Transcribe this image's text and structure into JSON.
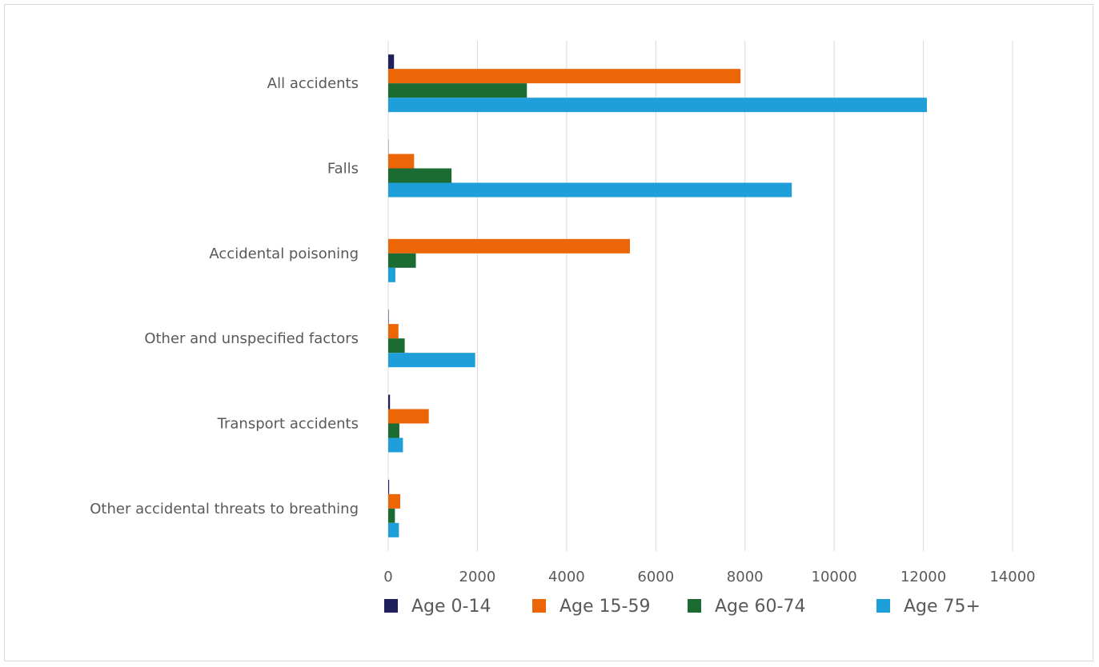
{
  "chart_data": {
    "type": "bar",
    "orientation": "horizontal",
    "categories": [
      "All accidents",
      "Falls",
      "Accidental poisoning",
      "Other and unspecified factors",
      "Transport accidents",
      "Other accidental threats to breathing"
    ],
    "series": [
      {
        "name": "Age 0-14",
        "color": "#1f1f5c",
        "values": [
          130,
          5,
          0,
          10,
          40,
          20
        ]
      },
      {
        "name": "Age 15-59",
        "color": "#ec6608",
        "values": [
          7900,
          580,
          5420,
          230,
          910,
          270
        ]
      },
      {
        "name": "Age 60-74",
        "color": "#1c6b32",
        "values": [
          3110,
          1420,
          620,
          370,
          250,
          150
        ]
      },
      {
        "name": "Age 75+",
        "color": "#1f9fd9",
        "values": [
          12080,
          9050,
          160,
          1950,
          330,
          240
        ]
      }
    ],
    "xlim": [
      0,
      14000
    ],
    "xticks": [
      "0",
      "2000",
      "4000",
      "6000",
      "8000",
      "10000",
      "12000",
      "14000"
    ],
    "grid": true,
    "legend_position": "bottom"
  }
}
